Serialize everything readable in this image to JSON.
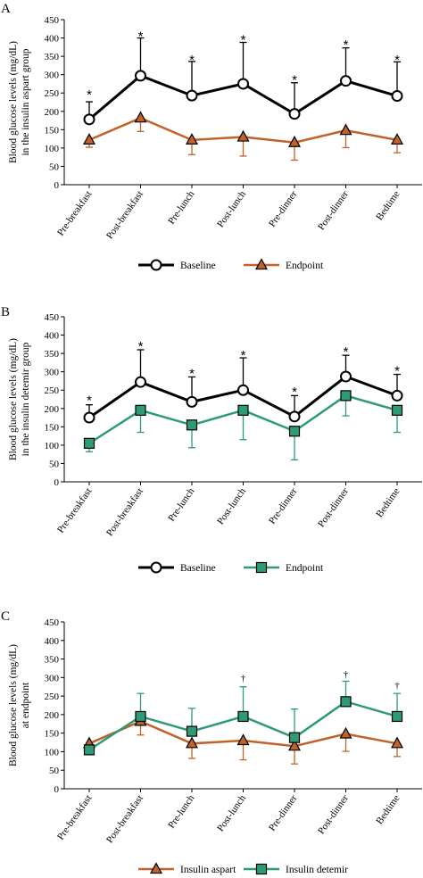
{
  "colors": {
    "baseline": "#000000",
    "aspart": "#c0622a",
    "detemir": "#2e9b78"
  },
  "chart_data": [
    {
      "type": "line",
      "panel_label": "A",
      "ylabel": [
        "Blood glucose levels (mg/dL)",
        "in the insulin aspart group"
      ],
      "ylim": [
        0,
        450
      ],
      "yticks": [
        0,
        50,
        100,
        150,
        200,
        250,
        300,
        350,
        400,
        450
      ],
      "categories": [
        "Pre-breakfast",
        "Post-breakfast",
        "Pre-lunch",
        "Post-lunch",
        "Pre-dinner",
        "Post-dinner",
        "Bedtime"
      ],
      "series": [
        {
          "name": "Baseline",
          "color": "#000000",
          "marker": "circle",
          "error_dir": "up",
          "values": [
            178,
            297,
            243,
            275,
            193,
            283,
            242
          ],
          "error": [
            48,
            103,
            93,
            113,
            85,
            90,
            93
          ]
        },
        {
          "name": "Endpoint",
          "color": "#c0622a",
          "marker": "triangle",
          "error_dir": "down",
          "values": [
            122,
            182,
            122,
            130,
            115,
            148,
            122
          ],
          "error": [
            20,
            37,
            40,
            52,
            48,
            47,
            35
          ]
        }
      ],
      "annotations": [
        {
          "category": "Pre-breakfast",
          "text": "*",
          "y": 255
        },
        {
          "category": "Post-breakfast",
          "text": "*",
          "y": 415
        },
        {
          "category": "Pre-lunch",
          "text": "*",
          "y": 350
        },
        {
          "category": "Post-lunch",
          "text": "*",
          "y": 405
        },
        {
          "category": "Pre-dinner",
          "text": "*",
          "y": 295
        },
        {
          "category": "Post-dinner",
          "text": "*",
          "y": 392
        },
        {
          "category": "Bedtime",
          "text": "*",
          "y": 350
        }
      ]
    },
    {
      "type": "line",
      "panel_label": "B",
      "ylabel": [
        "Blood glucose levels (mg/dL)",
        "in the insulin detemir group"
      ],
      "ylim": [
        0,
        450
      ],
      "yticks": [
        0,
        50,
        100,
        150,
        200,
        250,
        300,
        350,
        400,
        450
      ],
      "categories": [
        "Pre-breakfast",
        "Post-breakfast",
        "Pre-lunch",
        "Post-lunch",
        "Pre-dinner",
        "Post-dinner",
        "Bedtime"
      ],
      "series": [
        {
          "name": "Baseline",
          "color": "#000000",
          "marker": "circle",
          "error_dir": "up",
          "values": [
            175,
            272,
            218,
            250,
            178,
            287,
            235
          ],
          "error": [
            35,
            88,
            68,
            88,
            57,
            58,
            58
          ]
        },
        {
          "name": "Endpoint",
          "color": "#2e9b78",
          "marker": "square",
          "error_dir": "down",
          "values": [
            105,
            195,
            155,
            195,
            138,
            235,
            195
          ],
          "error": [
            23,
            60,
            62,
            80,
            78,
            55,
            60
          ]
        }
      ],
      "annotations": [
        {
          "category": "Pre-breakfast",
          "text": "*",
          "y": 232
        },
        {
          "category": "Post-breakfast",
          "text": "*",
          "y": 380
        },
        {
          "category": "Pre-lunch",
          "text": "*",
          "y": 305
        },
        {
          "category": "Post-lunch",
          "text": "*",
          "y": 355
        },
        {
          "category": "Pre-dinner",
          "text": "*",
          "y": 255
        },
        {
          "category": "Post-dinner",
          "text": "*",
          "y": 365
        },
        {
          "category": "Bedtime",
          "text": "*",
          "y": 312
        }
      ]
    },
    {
      "type": "line",
      "panel_label": "C",
      "ylabel": [
        "Blood glucose levels (mg/dL)",
        "at endpoint"
      ],
      "ylim": [
        0,
        450
      ],
      "yticks": [
        0,
        50,
        100,
        150,
        200,
        250,
        300,
        350,
        400,
        450
      ],
      "categories": [
        "Pre-breakfast",
        "Post-breakfast",
        "Pre-lunch",
        "Post-lunch",
        "Pre-dinner",
        "Post-dinner",
        "Bedtime"
      ],
      "series": [
        {
          "name": "Insulin aspart",
          "color": "#c0622a",
          "marker": "triangle",
          "error_dir": "down",
          "values": [
            122,
            182,
            122,
            130,
            115,
            148,
            122
          ],
          "error": [
            20,
            37,
            40,
            52,
            48,
            47,
            35
          ]
        },
        {
          "name": "Insulin detemir",
          "color": "#2e9b78",
          "marker": "square",
          "error_dir": "up",
          "values": [
            105,
            195,
            155,
            195,
            138,
            235,
            195
          ],
          "error": [
            0,
            62,
            62,
            80,
            77,
            55,
            62
          ]
        }
      ],
      "annotations": [
        {
          "category": "Post-lunch",
          "text": "†",
          "y": 300
        },
        {
          "category": "Post-dinner",
          "text": "†",
          "y": 310
        },
        {
          "category": "Bedtime",
          "text": "†",
          "y": 280
        }
      ]
    }
  ]
}
